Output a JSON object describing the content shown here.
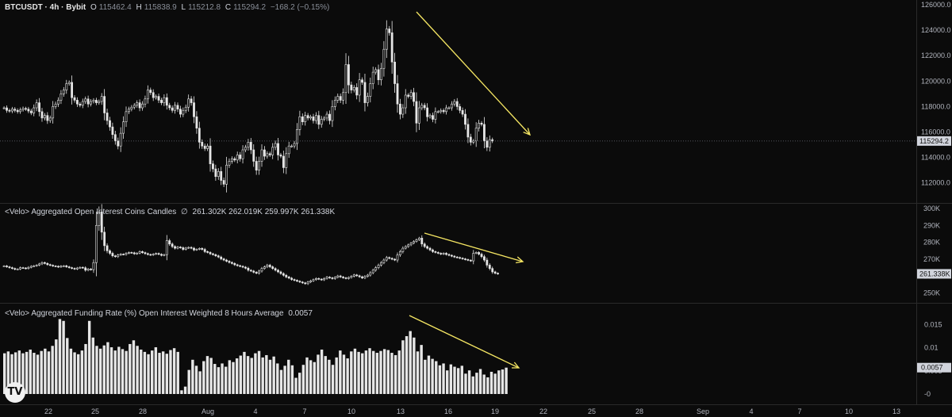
{
  "header": {
    "symbol": "BTCUSDT · 4h · Bybit",
    "open_label": "O",
    "open": "115462.4",
    "high_label": "H",
    "high": "115838.9",
    "low_label": "L",
    "low": "115212.8",
    "close_label": "C",
    "close": "115294.2",
    "change": "−168.2 (−0.15%)"
  },
  "oi_legend": {
    "title": "<Velo> Aggregated Open Interest Coins Candles",
    "symbol": "∅",
    "values": "261.302K  262.019K  259.997K  261.338K"
  },
  "fr_legend": {
    "title": "<Velo> Aggregated Funding Rate (%) Open Interest Weighted 8 Hours Average",
    "value": "0.0057"
  },
  "logo_text": "TV",
  "colors": {
    "background": "#0b0b0b",
    "candle": "#e6e6e6",
    "trend_arrow": "#f5e663",
    "grid_divider": "#2a2a2a",
    "axis_text": "#b2b5be"
  },
  "chart_data": [
    {
      "type": "candlestick",
      "title": "BTCUSDT · 4h · Bybit",
      "y_ticks": [
        "112000.0",
        "114000.0",
        "116000.0",
        "118000.0",
        "120000.0",
        "122000.0",
        "124000.0",
        "126000.0"
      ],
      "ylim": [
        110800,
        126000
      ],
      "last_price_label": "115294.2",
      "last_price": 115294.2,
      "x_ticks": [
        "22",
        "25",
        "28",
        "Aug",
        "4",
        "7",
        "10",
        "13",
        "16",
        "19",
        "22",
        "25",
        "28",
        "Sep",
        "4",
        "7",
        "10",
        "13"
      ],
      "closes": [
        117900,
        117700,
        117650,
        117800,
        117700,
        117600,
        117750,
        117850,
        117800,
        117650,
        117500,
        117900,
        118300,
        117600,
        117100,
        117300,
        116900,
        117100,
        118000,
        118200,
        118500,
        119000,
        119300,
        119800,
        119900,
        118700,
        118500,
        118200,
        118100,
        118400,
        118600,
        118200,
        118400,
        118500,
        118300,
        118400,
        118800,
        117500,
        116900,
        116400,
        115800,
        115300,
        114900,
        115900,
        116800,
        117600,
        117800,
        117950,
        118100,
        118300,
        117900,
        118200,
        118600,
        119300,
        119100,
        118700,
        118800,
        118500,
        118300,
        118700,
        118100,
        117900,
        117700,
        118100,
        117800,
        117400,
        117700,
        117950,
        118600,
        118300,
        117200,
        116300,
        115200,
        114900,
        114700,
        114900,
        113500,
        113100,
        112500,
        112900,
        112200,
        111900,
        113400,
        113700,
        113900,
        113800,
        114200,
        113900,
        114600,
        114800,
        115200,
        114600,
        113700,
        113000,
        113700,
        114600,
        114100,
        114300,
        114200,
        114800,
        115100,
        114200,
        114100,
        113200,
        114300,
        114900,
        114900,
        115100,
        116200,
        117200,
        116800,
        117300,
        117100,
        117200,
        116900,
        117300,
        116600,
        117000,
        117100,
        117400,
        116900,
        118000,
        118500,
        118800,
        118500,
        119100,
        121300,
        119700,
        119300,
        119500,
        118900,
        120100,
        119900,
        118300,
        118800,
        119800,
        120700,
        120900,
        120100,
        121000,
        122500,
        124100,
        123800,
        121500,
        119800,
        118200,
        117400,
        117900,
        118900,
        118800,
        119100,
        118400,
        116700,
        117900,
        118100,
        117900,
        117200,
        117300,
        117000,
        117600,
        117600,
        117700,
        117600,
        117900,
        117900,
        118200,
        118400,
        118000,
        117700,
        117400,
        116600,
        115600,
        115200,
        115300,
        116300,
        116700,
        116600,
        115300,
        114800,
        115400,
        115294
      ]
    },
    {
      "type": "candlestick",
      "title": "<Velo> Aggregated Open Interest Coins Candles",
      "y_ticks": [
        "250K",
        "260K",
        "270K",
        "280K",
        "290K",
        "300K"
      ],
      "ylim": [
        247000,
        300000
      ],
      "last_value_label": "261.338K",
      "last_value": 261338,
      "closes": [
        266000,
        265500,
        265000,
        264500,
        264000,
        264200,
        265000,
        264800,
        264500,
        265200,
        265800,
        266100,
        266500,
        267200,
        268000,
        267500,
        266800,
        266400,
        266000,
        265800,
        265400,
        265900,
        266100,
        265500,
        265000,
        264600,
        264200,
        264800,
        265200,
        264900,
        263500,
        264200,
        263800,
        268000,
        290000,
        298000,
        286000,
        278000,
        275000,
        273500,
        272000,
        271500,
        272500,
        273000,
        272800,
        273500,
        274000,
        273800,
        273200,
        273600,
        274500,
        273900,
        273300,
        272800,
        272500,
        273000,
        273400,
        272900,
        272300,
        272700,
        281000,
        279000,
        277500,
        276500,
        277200,
        276800,
        275800,
        276600,
        277000,
        276500,
        275500,
        275900,
        276400,
        275800,
        274500,
        274000,
        273200,
        272700,
        272000,
        271300,
        270200,
        269500,
        268800,
        268100,
        267500,
        266700,
        266200,
        265800,
        265300,
        264700,
        263500,
        263000,
        262300,
        261700,
        263000,
        264500,
        265500,
        266500,
        265500,
        264500,
        263500,
        262500,
        261500,
        260500,
        259500,
        258800,
        258000,
        257500,
        257000,
        256500,
        256000,
        255500,
        256500,
        257200,
        257900,
        258600,
        258200,
        257800,
        258600,
        259400,
        259000,
        258500,
        259300,
        260100,
        259500,
        259000,
        258600,
        259200,
        259900,
        260700,
        260200,
        259600,
        258900,
        259800,
        260600,
        262000,
        263500,
        265000,
        266500,
        268000,
        269500,
        271000,
        270500,
        270000,
        269500,
        272500,
        274500,
        276500,
        277500,
        278500,
        279500,
        280500,
        281500,
        282500,
        279000,
        277500,
        276500,
        275500,
        274500,
        274000,
        273500,
        273000,
        273500,
        272800,
        272300,
        271800,
        271300,
        271000,
        270600,
        270200,
        269800,
        269400,
        269000,
        273500,
        274000,
        273000,
        271500,
        269500,
        266500,
        264500,
        262500,
        261700,
        261338
      ]
    },
    {
      "type": "bar",
      "title": "<Velo> Aggregated Funding Rate (%) Open Interest Weighted 8 Hours Average",
      "y_ticks": [
        "-0",
        "0.005",
        "0.01",
        "0.015"
      ],
      "ylim": [
        -0.0012,
        0.0185
      ],
      "last_value_label": "0.0057",
      "last_value": 0.0057,
      "values": [
        0.0088,
        0.0092,
        0.0086,
        0.009,
        0.0094,
        0.0088,
        0.0091,
        0.0096,
        0.0089,
        0.0085,
        0.0093,
        0.0098,
        0.0092,
        0.0104,
        0.0118,
        0.0162,
        0.0158,
        0.0121,
        0.0098,
        0.009,
        0.0086,
        0.0094,
        0.0108,
        0.0158,
        0.0122,
        0.0104,
        0.0098,
        0.0105,
        0.0112,
        0.0101,
        0.0094,
        0.0102,
        0.0097,
        0.0093,
        0.0108,
        0.0116,
        0.0104,
        0.0096,
        0.0091,
        0.0086,
        0.0094,
        0.0101,
        0.0089,
        0.0092,
        0.0087,
        0.0095,
        0.0099,
        0.0091,
        0.0008,
        0.0016,
        0.0052,
        0.0074,
        0.0061,
        0.0049,
        0.0071,
        0.0082,
        0.0078,
        0.0065,
        0.0058,
        0.0066,
        0.0059,
        0.0073,
        0.0069,
        0.0077,
        0.0083,
        0.0091,
        0.0082,
        0.0078,
        0.0088,
        0.0093,
        0.0079,
        0.0084,
        0.0074,
        0.0081,
        0.0066,
        0.0052,
        0.0061,
        0.0074,
        0.0062,
        0.0035,
        0.0046,
        0.0063,
        0.0079,
        0.0073,
        0.0069,
        0.0085,
        0.0096,
        0.0082,
        0.0074,
        0.0063,
        0.0079,
        0.0094,
        0.0085,
        0.0077,
        0.0092,
        0.0098,
        0.0091,
        0.0088,
        0.0094,
        0.0099,
        0.0093,
        0.0089,
        0.0093,
        0.0097,
        0.0095,
        0.0089,
        0.0084,
        0.0094,
        0.0116,
        0.0125,
        0.0136,
        0.0122,
        0.0092,
        0.0106,
        0.0074,
        0.0083,
        0.0076,
        0.0071,
        0.0062,
        0.0066,
        0.0051,
        0.0064,
        0.0059,
        0.0056,
        0.0061,
        0.0044,
        0.0051,
        0.0038,
        0.0046,
        0.0054,
        0.0042,
        0.0036,
        0.0048,
        0.0044,
        0.0051,
        0.0053,
        0.0057
      ]
    }
  ]
}
